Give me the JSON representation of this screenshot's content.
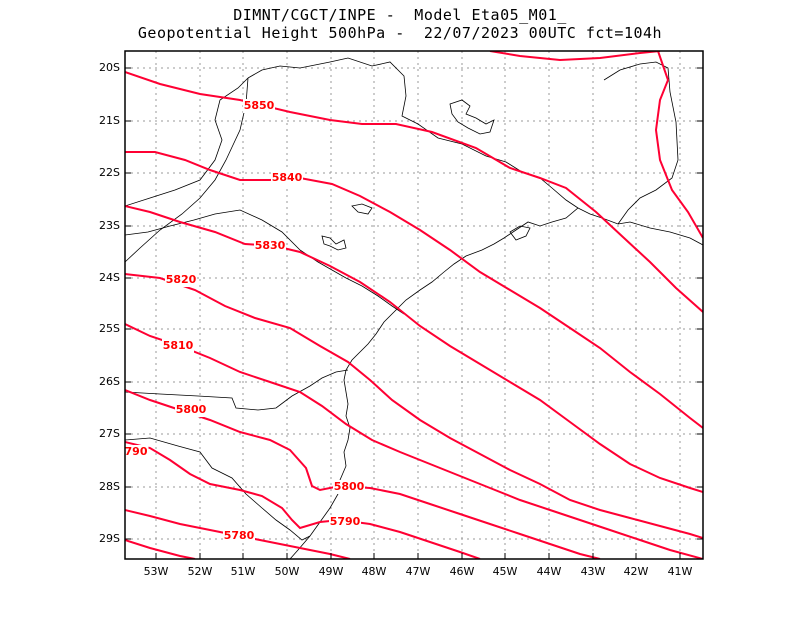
{
  "title": {
    "line1": "DIMNT/CGCT/INPE -  Model Eta05_M01_",
    "line2": "Geopotential Height 500hPa -  22/07/2023 00UTC fct=104h"
  },
  "axes": {
    "lat_labels": [
      "20S",
      "21S",
      "22S",
      "23S",
      "24S",
      "25S",
      "26S",
      "27S",
      "28S",
      "29S"
    ],
    "lon_labels": [
      "53W",
      "52W",
      "51W",
      "50W",
      "49W",
      "48W",
      "47W",
      "46W",
      "45W",
      "44W",
      "43W",
      "42W",
      "41W"
    ]
  },
  "contours": {
    "line_color": "#ff0033",
    "label_color": "#ff0000",
    "labels": [
      "5850",
      "5840",
      "5830",
      "5820",
      "5810",
      "5800",
      "790",
      "5800",
      "5790",
      "5780"
    ]
  },
  "colors": {
    "coast": "#000000",
    "grid": "#999999",
    "frame": "#000000"
  }
}
